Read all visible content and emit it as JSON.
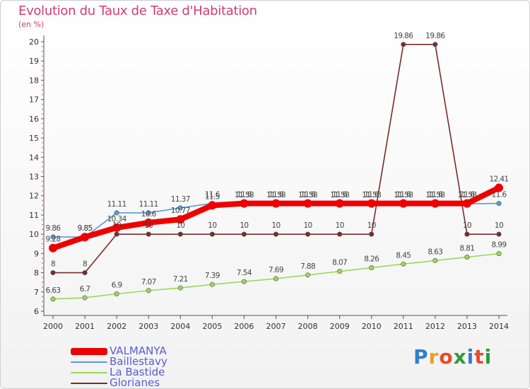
{
  "header": {
    "title": "Evolution du Taux de Taxe d'Habitation",
    "unit": "(en %)"
  },
  "logo": {
    "text": "Proxiti",
    "letter_colors": [
      "#2f7fd0",
      "#e8a020",
      "#e84a2a",
      "#2f9a3a",
      "#2f7fd0",
      "#e84a2a",
      "#2f9a3a"
    ]
  },
  "chart_data": {
    "type": "line",
    "x": [
      "2000",
      "2001",
      "2002",
      "2003",
      "2004",
      "2005",
      "2006",
      "2007",
      "2008",
      "2009",
      "2010",
      "2011",
      "2012",
      "2013",
      "2014"
    ],
    "ylim": [
      6,
      20
    ],
    "yticks": [
      "6",
      "7",
      "8",
      "9",
      "10",
      "11",
      "12",
      "13",
      "14",
      "15",
      "16",
      "17",
      "18",
      "19",
      "20"
    ],
    "grid": false,
    "legend_position": "bottom-left",
    "series": [
      {
        "name": "Glorianes",
        "color": "#7a2b2b",
        "values": [
          8,
          8,
          10,
          10,
          10,
          10,
          10,
          10,
          10,
          10,
          10,
          19.86,
          19.86,
          10,
          10
        ],
        "labels": [
          "8",
          "8",
          "10",
          "10",
          "10",
          "10",
          "10",
          "10",
          "10",
          "10",
          "10",
          "19.86",
          "19.86",
          "10",
          "10"
        ]
      },
      {
        "name": "La Bastide",
        "color": "#9ad85a",
        "values": [
          6.63,
          6.7,
          6.9,
          7.07,
          7.21,
          7.39,
          7.54,
          7.69,
          7.88,
          8.07,
          8.26,
          8.45,
          8.63,
          8.81,
          8.99
        ],
        "labels": [
          "6.63",
          "6.7",
          "6.9",
          "7.07",
          "7.21",
          "7.39",
          "7.54",
          "7.69",
          "7.88",
          "8.07",
          "8.26",
          "8.45",
          "8.63",
          "8.81",
          "8.99"
        ]
      },
      {
        "name": "Baillestavy",
        "color": "#5b9bd5",
        "values": [
          9.86,
          9.85,
          11.11,
          11.11,
          11.37,
          11.6,
          11.58,
          11.58,
          11.58,
          11.58,
          11.58,
          11.58,
          11.58,
          11.58,
          11.6
        ],
        "labels": [
          "9.86",
          "9.85",
          "11.11",
          "11.11",
          "11.37",
          "11.6",
          "11.58",
          "11.58",
          "11.58",
          "11.58",
          "11.58",
          "11.58",
          "11.58",
          "11.58",
          "11.6"
        ]
      },
      {
        "name": "VALMANYA",
        "color": "#ee0000",
        "values": [
          9.28,
          9.85,
          10.34,
          10.6,
          10.77,
          11.5,
          11.6,
          11.6,
          11.6,
          11.6,
          11.6,
          11.6,
          11.6,
          11.6,
          12.41
        ],
        "labels": [
          "9.28",
          "9.85",
          "10.34",
          "10.6",
          "10.77",
          "11.5",
          "11.6",
          "11.6",
          "11.6",
          "11.6",
          "11.6",
          "11.6",
          "11.6",
          "11.6",
          "12.41"
        ]
      }
    ]
  },
  "legend": {
    "items": [
      {
        "label": "VALMANYA",
        "color": "#ee0000",
        "thickness": 10
      },
      {
        "label": "Baillestavy",
        "color": "#5b9bd5",
        "thickness": 2
      },
      {
        "label": "La Bastide",
        "color": "#9ad85a",
        "thickness": 2
      },
      {
        "label": "Glorianes",
        "color": "#7a2b2b",
        "thickness": 2
      }
    ]
  }
}
